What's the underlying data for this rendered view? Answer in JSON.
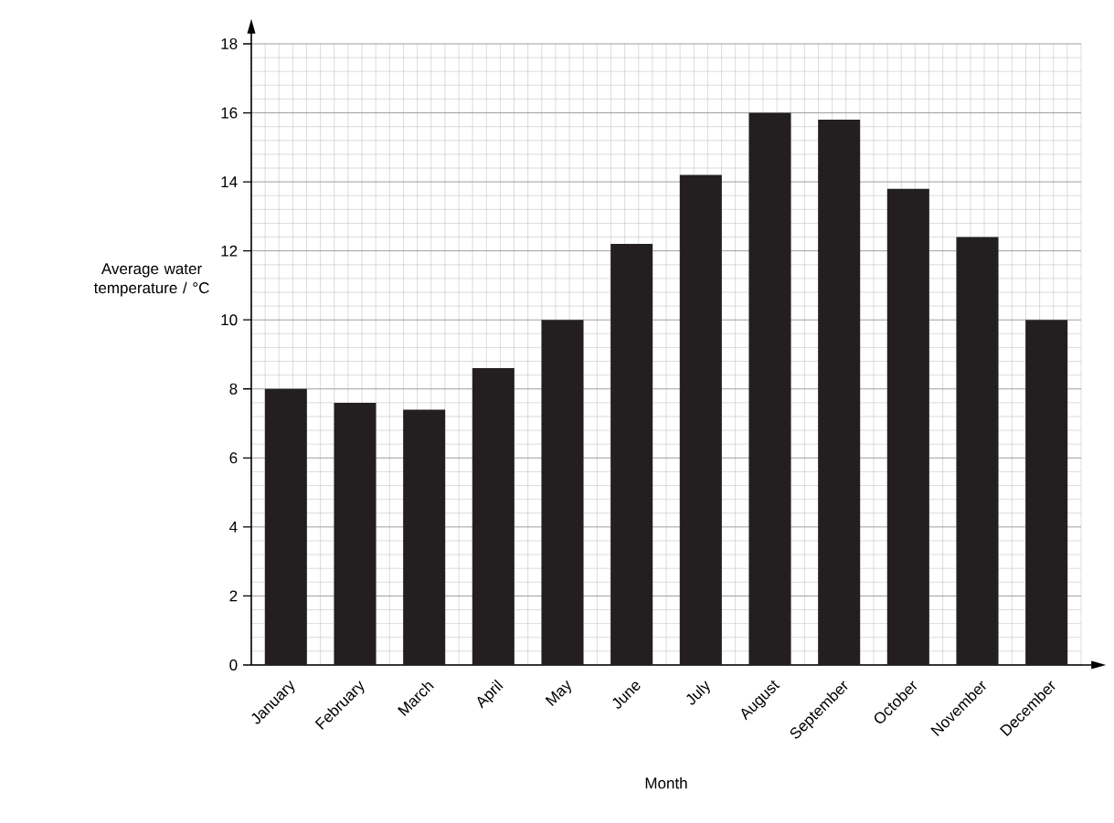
{
  "chart_data": {
    "type": "bar",
    "xlabel": "Month",
    "ylabel": "Average water temperature / °C",
    "categories": [
      "January",
      "February",
      "March",
      "April",
      "May",
      "June",
      "July",
      "August",
      "September",
      "October",
      "November",
      "December"
    ],
    "values": [
      8,
      7.6,
      7.4,
      8.6,
      10,
      12.2,
      14.2,
      16,
      15.8,
      13.8,
      12.4,
      10
    ],
    "color": "#231f20",
    "ylim": [
      0,
      18
    ],
    "yticks": [
      0,
      2,
      4,
      6,
      8,
      10,
      12,
      14,
      16,
      18
    ],
    "grid": true
  }
}
